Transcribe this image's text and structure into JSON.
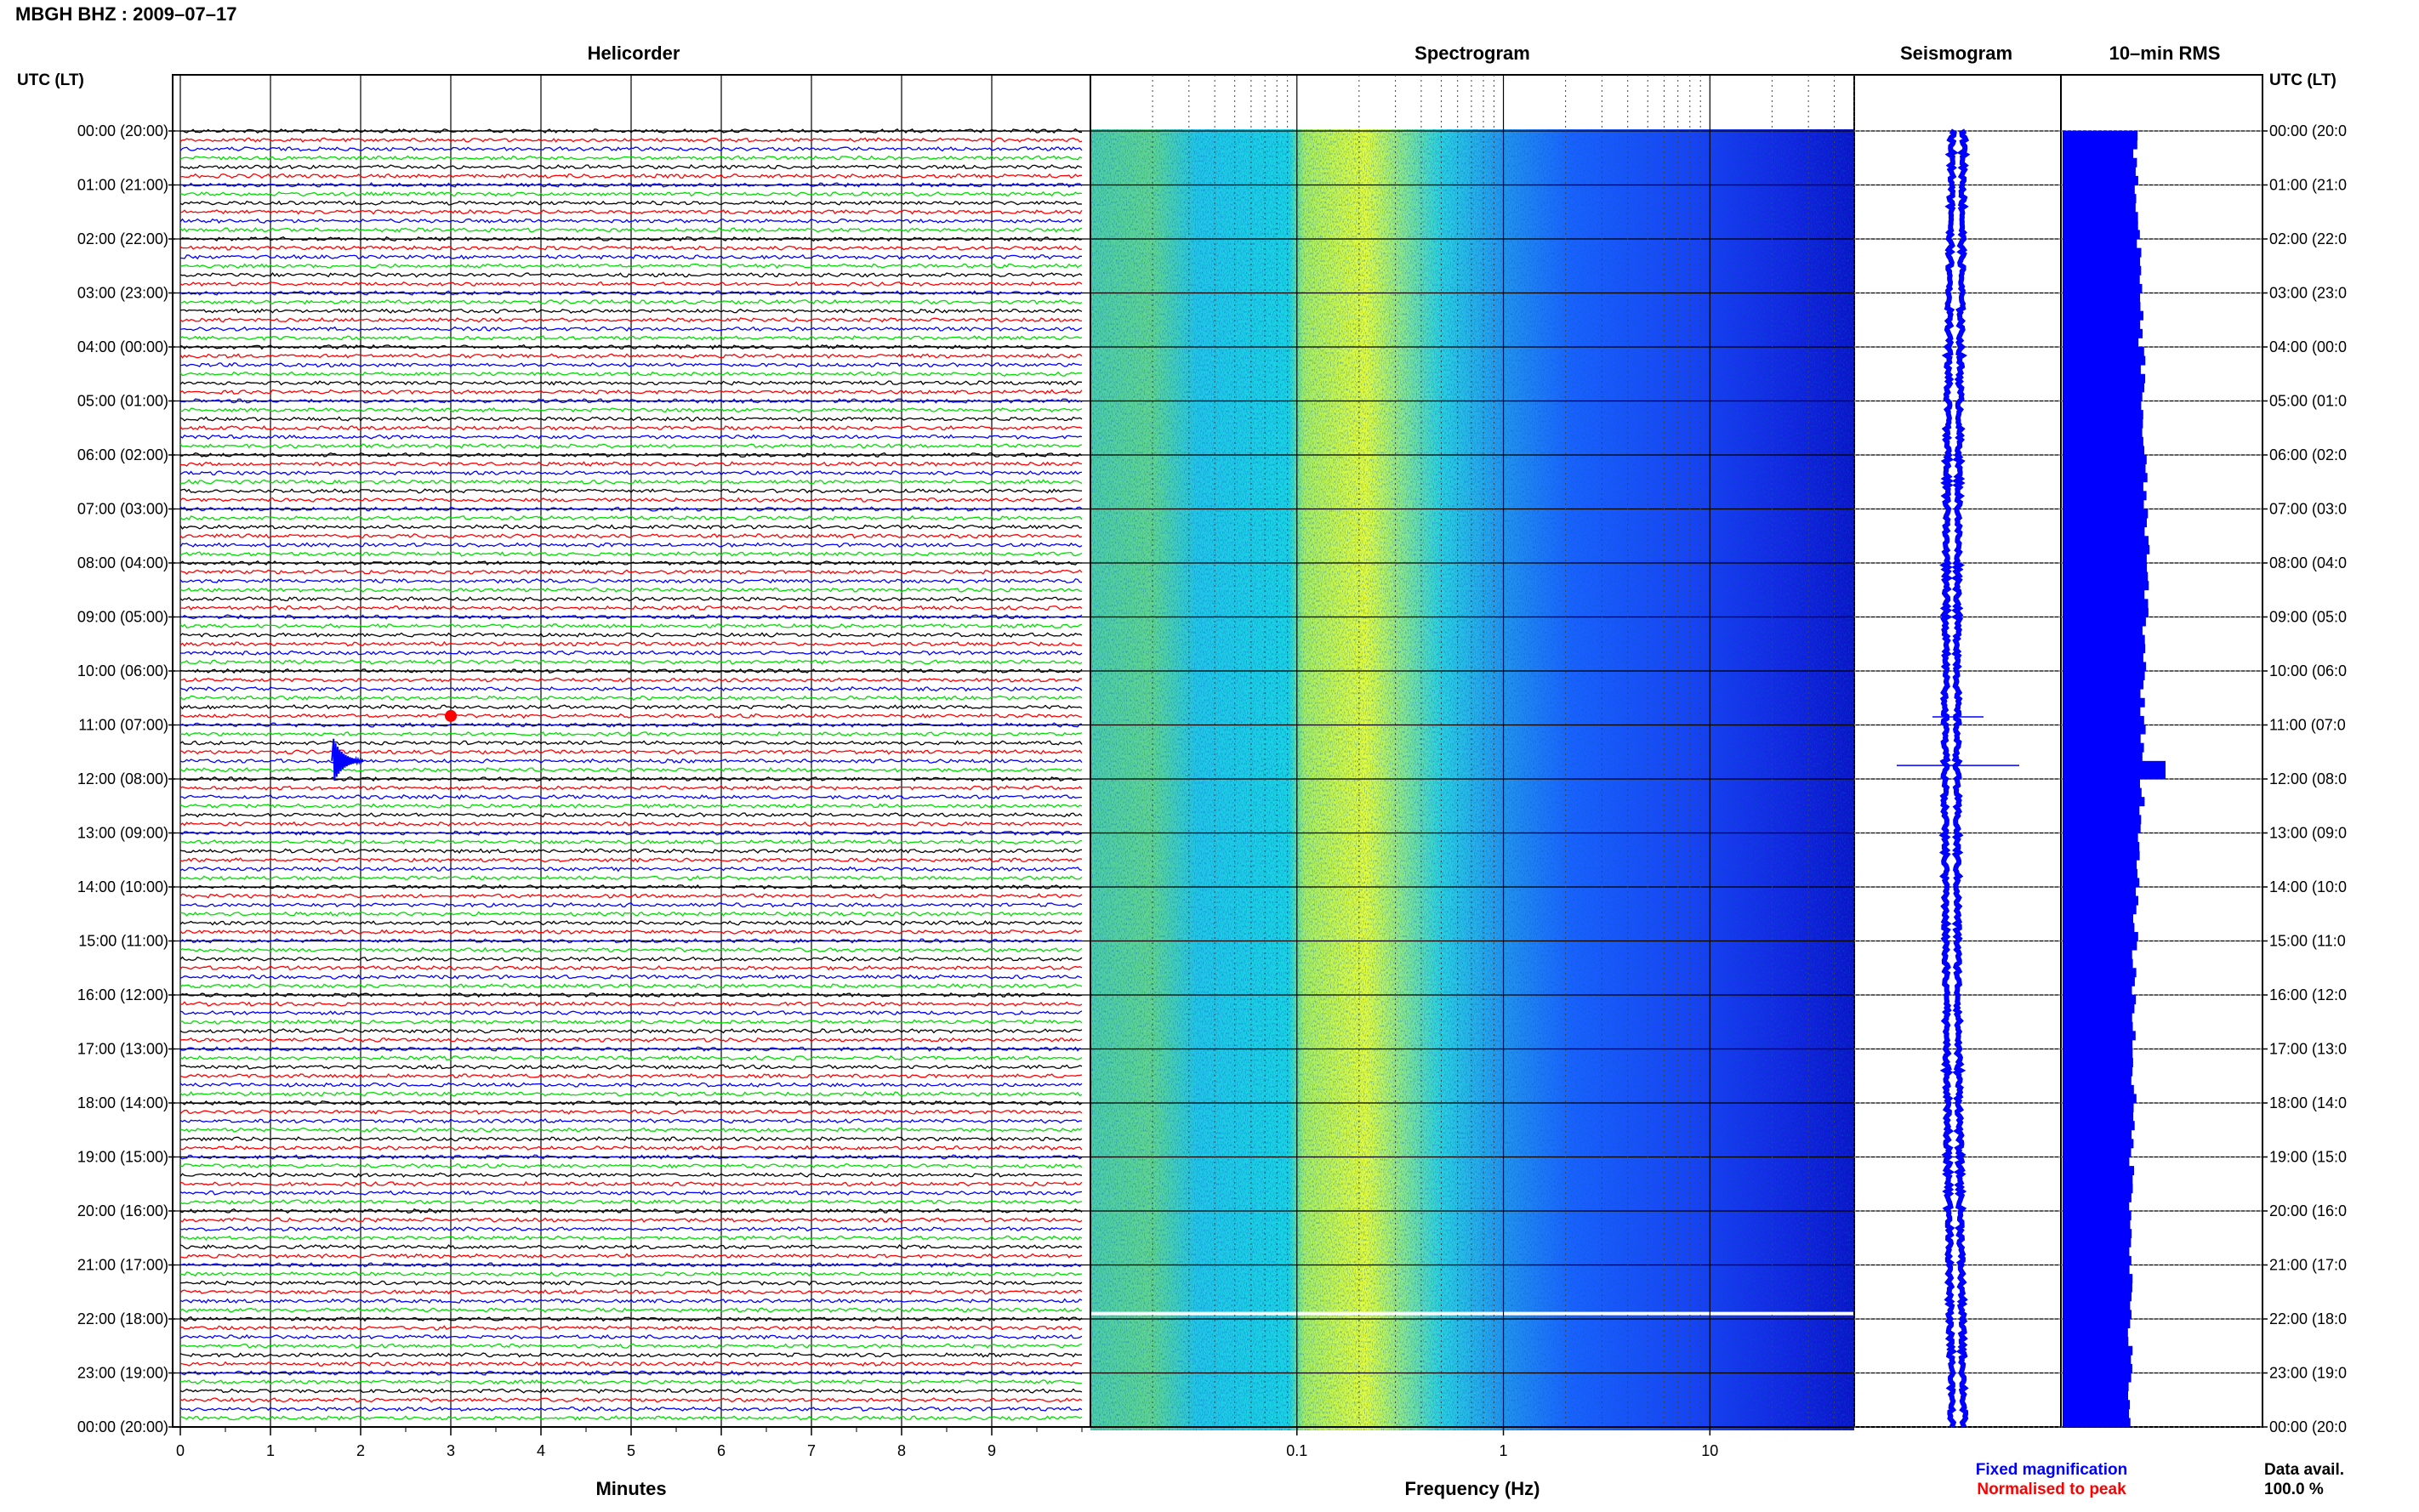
{
  "page_title": "MBGH BHZ : 2009–07–17",
  "panels": {
    "helicorder": "Helicorder",
    "spectrogram": "Spectrogram",
    "seismogram": "Seismogram",
    "rms": "10–min RMS"
  },
  "time_axis_label": "UTC (LT)",
  "left_labels": [
    "00:00 (20:00)",
    "01:00 (21:00)",
    "02:00 (22:00)",
    "03:00 (23:00)",
    "04:00 (00:00)",
    "05:00 (01:00)",
    "06:00 (02:00)",
    "07:00 (03:00)",
    "08:00 (04:00)",
    "09:00 (05:00)",
    "10:00 (06:00)",
    "11:00 (07:00)",
    "12:00 (08:00)",
    "13:00 (09:00)",
    "14:00 (10:00)",
    "15:00 (11:00)",
    "16:00 (12:00)",
    "17:00 (13:00)",
    "18:00 (14:00)",
    "19:00 (15:00)",
    "20:00 (16:00)",
    "21:00 (17:00)",
    "22:00 (18:00)",
    "23:00 (19:00)",
    "00:00 (20:00)"
  ],
  "right_labels": [
    "00:00 (20:0",
    "01:00 (21:0",
    "02:00 (22:0",
    "03:00 (23:0",
    "04:00 (00:0",
    "05:00 (01:0",
    "06:00 (02:0",
    "07:00 (03:0",
    "08:00 (04:0",
    "09:00 (05:0",
    "10:00 (06:0",
    "11:00 (07:0",
    "12:00 (08:0",
    "13:00 (09:0",
    "14:00 (10:0",
    "15:00 (11:0",
    "16:00 (12:0",
    "17:00 (13:0",
    "18:00 (14:0",
    "19:00 (15:0",
    "20:00 (16:0",
    "21:00 (17:0",
    "22:00 (18:0",
    "23:00 (19:0",
    "00:00 (20:0"
  ],
  "minutes_ticks": [
    "0",
    "1",
    "2",
    "3",
    "4",
    "5",
    "6",
    "7",
    "8",
    "9"
  ],
  "minutes_label": "Minutes",
  "freq_ticks": [
    "0.1",
    "1",
    "10"
  ],
  "freq_label": "Frequency (Hz)",
  "legend": {
    "fixed": "Fixed magnification",
    "normalised": "Normalised to peak",
    "fixed_color": "#0000ff",
    "normalised_color": "#ff0000"
  },
  "data_avail": {
    "label": "Data avail.",
    "value": "100.0 %"
  },
  "colors": {
    "trace_cycle": [
      "#000000",
      "#ff0000",
      "#0000ff",
      "#00dd00"
    ],
    "spectro_low": "#1a1aff",
    "spectro_mid": "#22e0e0",
    "spectro_high": "#e0ff40",
    "rms_bar": "#0000ff"
  },
  "chart_data": [
    {
      "type": "line",
      "title": "Helicorder",
      "xlabel": "Minutes",
      "xlim": [
        0,
        10
      ],
      "hours_per_day": 24,
      "traces_per_hour": 6,
      "trace_minutes": 10,
      "events": [
        {
          "utc": "11:40",
          "minute": 1.7,
          "color": "blue",
          "kind": "local event"
        },
        {
          "utc": "10:50",
          "minute": 3.0,
          "color": "red",
          "kind": "marker"
        }
      ]
    },
    {
      "type": "heatmap",
      "title": "Spectrogram",
      "xlabel": "Frequency (Hz)",
      "xscale": "log",
      "xlim": [
        0.01,
        50
      ],
      "ylim_hours": [
        0,
        24
      ],
      "gap_hours": [
        21.9
      ]
    },
    {
      "type": "line",
      "title": "Seismogram",
      "ylim_hours": [
        0,
        24
      ],
      "spikes_hours": [
        10.85,
        11.75
      ]
    },
    {
      "type": "bar",
      "title": "10–min RMS",
      "ylim_hours": [
        0,
        24
      ],
      "bins": 144,
      "relative_rms_hourly": [
        0.78,
        0.8,
        0.82,
        0.84,
        0.86,
        0.86,
        0.88,
        0.9,
        0.9,
        0.88,
        0.86,
        0.86,
        0.85,
        0.8,
        0.78,
        0.77,
        0.76,
        0.76,
        0.75,
        0.74,
        0.74,
        0.73,
        0.72,
        0.72
      ],
      "peak": {
        "hour": 11.7,
        "relative_rms": 1.1
      }
    }
  ]
}
